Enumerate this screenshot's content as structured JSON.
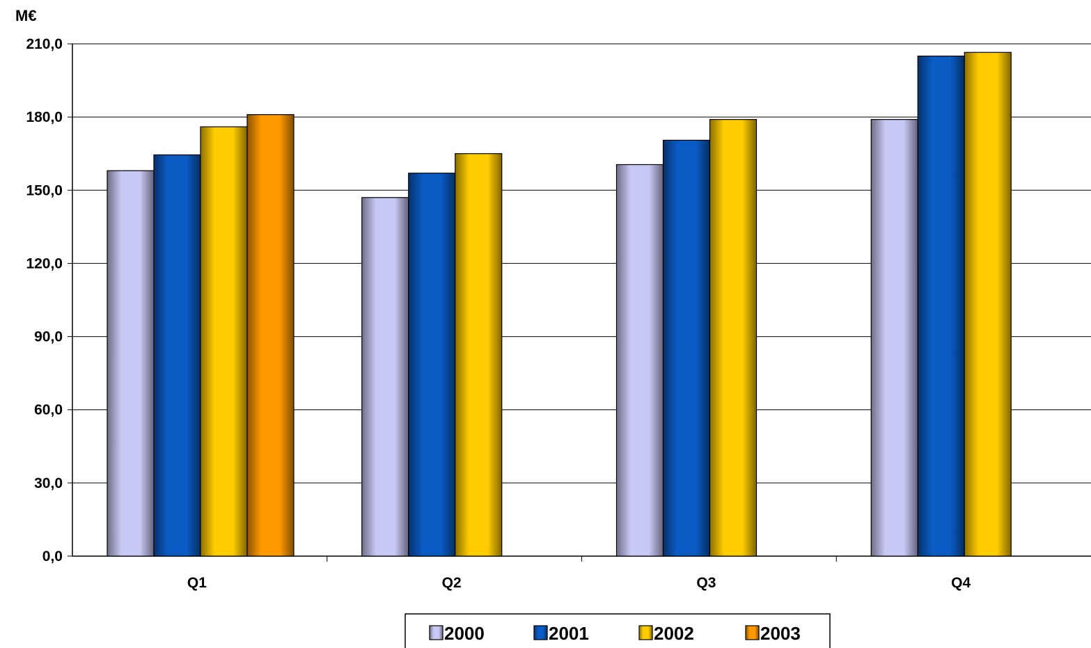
{
  "chart_data": {
    "type": "bar",
    "unit_label": "M€",
    "categories": [
      "Q1",
      "Q2",
      "Q3",
      "Q4"
    ],
    "ylim": [
      0,
      210
    ],
    "yticks": [
      0,
      30,
      60,
      90,
      120,
      150,
      180,
      210
    ],
    "ytick_labels": [
      "0,0",
      "30,0",
      "60,0",
      "90,0",
      "120,0",
      "150,0",
      "180,0",
      "210,0"
    ],
    "grid": true,
    "legend_position": "bottom",
    "series": [
      {
        "name": "2000",
        "color": "#C8C8F5",
        "values": [
          158,
          147,
          160.5,
          179
        ]
      },
      {
        "name": "2001",
        "color": "#0A5BC4",
        "values": [
          164.5,
          157,
          170.5,
          205
        ]
      },
      {
        "name": "2002",
        "color": "#FFCC00",
        "values": [
          176,
          165,
          179,
          206.5
        ]
      },
      {
        "name": "2003",
        "color": "#FF9900",
        "values": [
          181,
          null,
          null,
          null
        ]
      }
    ]
  }
}
